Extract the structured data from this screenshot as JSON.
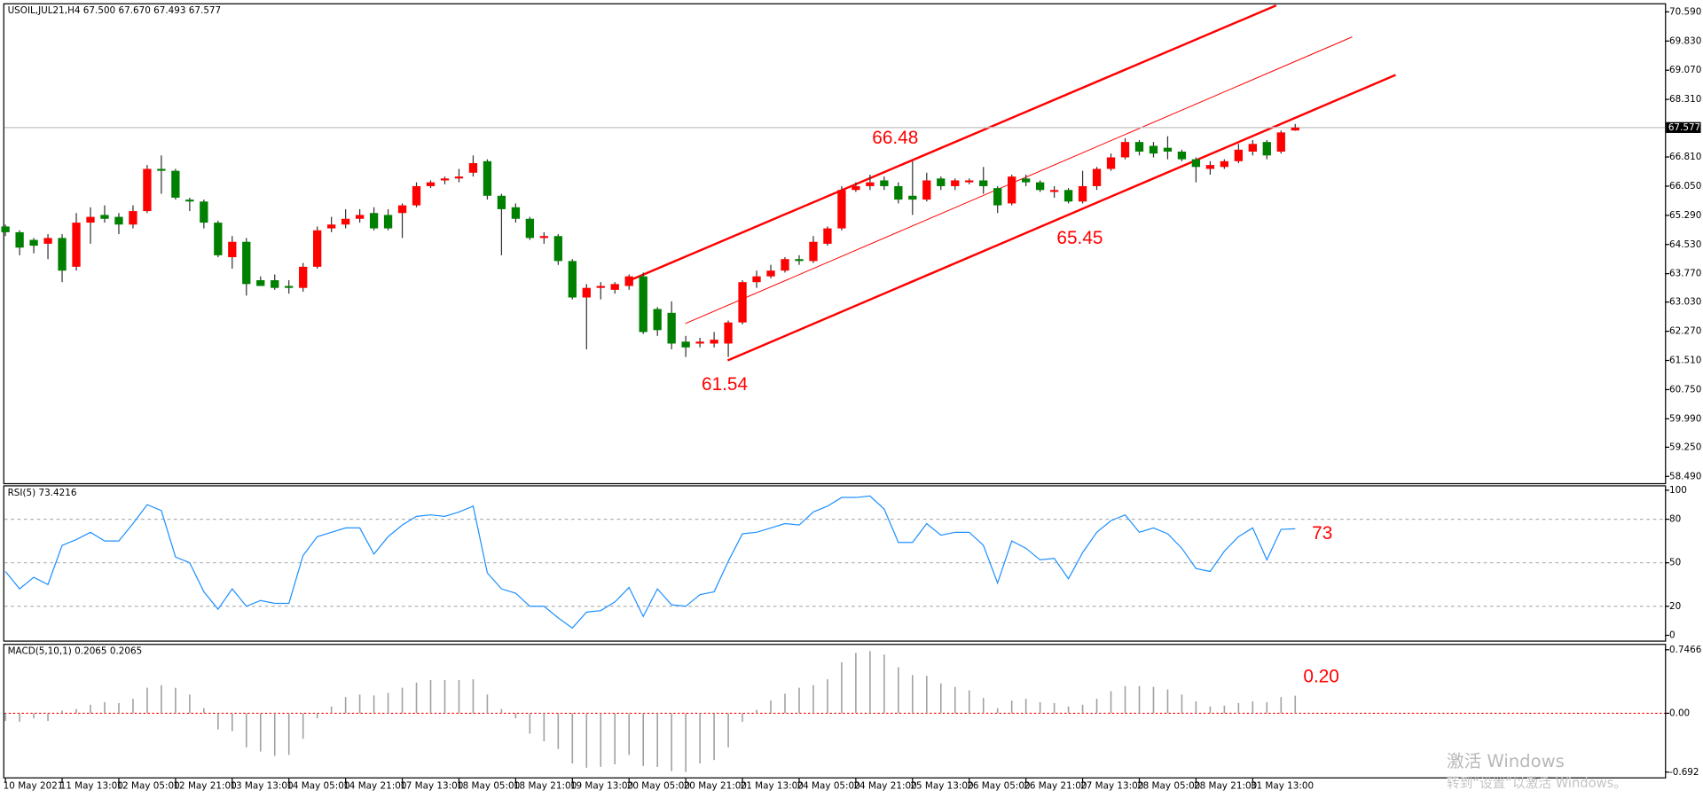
{
  "chart_data": [
    {
      "type": "candlestick",
      "title": "USOIL,JUL21,H4 67.500 67.670 67.493 67.577",
      "categories": [
        "10 May 2021",
        null,
        null,
        null,
        "11 May 13:00",
        null,
        null,
        null,
        "12 May 05:00",
        null,
        null,
        null,
        "12 May 21:00",
        null,
        null,
        null,
        "13 May 13:00",
        null,
        null,
        null,
        "14 May 05:00",
        null,
        null,
        null,
        "14 May 21:00",
        null,
        null,
        null,
        "17 May 13:00",
        null,
        null,
        null,
        "18 May 05:00",
        null,
        null,
        null,
        "18 May 21:00",
        null,
        null,
        null,
        "19 May 13:00",
        null,
        null,
        null,
        "20 May 05:00",
        null,
        null,
        null,
        "20 May 21:00",
        null,
        null,
        null,
        "21 May 13:00",
        null,
        null,
        null,
        "24 May 05:00",
        null,
        null,
        null,
        "24 May 21:00",
        null,
        null,
        null,
        "25 May 13:00",
        null,
        null,
        null,
        "26 May 05:00",
        null,
        null,
        null,
        "26 May 21:00",
        null,
        null,
        null,
        "27 May 13:00",
        null,
        null,
        null,
        "28 May 05:00",
        null,
        null,
        null,
        "28 May 21:00",
        null,
        null,
        null,
        "31 May 13:00",
        null,
        null,
        null
      ],
      "open": [
        65.0,
        64.85,
        64.65,
        64.55,
        64.7,
        63.95,
        65.1,
        65.3,
        65.25,
        65.05,
        65.4,
        66.5,
        66.45,
        65.7,
        65.65,
        65.1,
        64.2,
        64.6,
        63.6,
        63.6,
        63.45,
        63.4,
        63.95,
        64.95,
        65.05,
        65.2,
        65.35,
        65.3,
        65.35,
        65.55,
        66.05,
        66.2,
        66.25,
        66.4,
        66.7,
        65.8,
        65.5,
        65.2,
        64.7,
        64.75,
        64.1,
        63.15,
        63.4,
        63.35,
        63.45,
        63.7,
        62.85,
        62.75,
        62.0,
        61.95,
        61.95,
        61.95,
        62.5,
        63.55,
        63.7,
        63.85,
        64.15,
        64.1,
        64.55,
        64.95,
        65.95,
        66.05,
        66.2,
        66.05,
        65.8,
        65.7,
        66.25,
        66.05,
        66.15,
        66.2,
        66.0,
        65.6,
        66.25,
        66.15,
        65.9,
        65.95,
        65.65,
        66.05,
        66.5,
        66.8,
        67.2,
        67.1,
        67.05,
        66.95,
        66.75,
        66.5,
        66.55,
        66.7,
        66.95,
        67.2,
        66.95,
        67.5
      ],
      "high": [
        65.05,
        64.9,
        64.7,
        64.8,
        64.8,
        65.35,
        65.5,
        65.55,
        65.35,
        65.55,
        66.6,
        66.85,
        66.5,
        65.75,
        65.7,
        65.15,
        64.75,
        64.7,
        63.7,
        63.75,
        63.6,
        64.05,
        65.0,
        65.25,
        65.45,
        65.45,
        65.5,
        65.45,
        65.6,
        66.15,
        66.2,
        66.3,
        66.5,
        66.85,
        66.75,
        65.85,
        65.6,
        65.25,
        64.85,
        64.8,
        64.15,
        63.5,
        63.55,
        63.55,
        63.75,
        63.8,
        62.9,
        63.05,
        62.15,
        62.1,
        62.25,
        62.55,
        63.6,
        63.85,
        64.0,
        64.2,
        64.25,
        64.75,
        65.0,
        66.05,
        66.15,
        66.35,
        66.3,
        66.15,
        66.7,
        66.4,
        66.3,
        66.25,
        66.25,
        66.55,
        66.05,
        66.35,
        66.35,
        66.2,
        66.05,
        66.0,
        66.45,
        66.55,
        66.9,
        67.3,
        67.25,
        67.2,
        67.35,
        67.0,
        66.8,
        66.7,
        66.75,
        67.15,
        67.25,
        67.25,
        67.5,
        67.67
      ],
      "low": [
        64.75,
        64.25,
        64.3,
        64.15,
        63.55,
        63.85,
        64.55,
        65.1,
        64.8,
        64.95,
        65.35,
        65.85,
        65.7,
        65.4,
        64.95,
        64.2,
        63.9,
        63.2,
        63.45,
        63.35,
        63.25,
        63.3,
        63.9,
        64.85,
        64.95,
        65.1,
        64.9,
        64.9,
        64.7,
        65.5,
        66.0,
        66.1,
        66.15,
        66.3,
        65.7,
        64.25,
        65.1,
        64.65,
        64.55,
        64.0,
        63.1,
        61.8,
        63.1,
        63.25,
        63.35,
        62.2,
        62.15,
        61.8,
        61.6,
        61.85,
        61.85,
        61.6,
        62.45,
        63.4,
        63.65,
        63.8,
        64.0,
        64.05,
        64.5,
        64.9,
        65.9,
        65.95,
        65.95,
        65.6,
        65.3,
        65.65,
        65.95,
        65.95,
        66.1,
        65.85,
        65.35,
        65.55,
        66.05,
        65.9,
        65.75,
        65.6,
        65.6,
        65.95,
        66.45,
        66.75,
        66.85,
        66.8,
        66.75,
        66.7,
        66.15,
        66.35,
        66.5,
        66.65,
        66.85,
        66.75,
        66.9,
        67.493
      ],
      "close": [
        64.85,
        64.45,
        64.5,
        64.7,
        63.85,
        65.1,
        65.25,
        65.2,
        65.05,
        65.4,
        66.5,
        66.45,
        65.75,
        65.65,
        65.1,
        64.25,
        64.6,
        63.5,
        63.45,
        63.4,
        63.4,
        63.95,
        64.9,
        65.05,
        65.2,
        65.3,
        64.95,
        64.95,
        65.55,
        66.05,
        66.15,
        66.25,
        66.3,
        66.65,
        65.8,
        65.45,
        65.2,
        64.7,
        64.75,
        64.1,
        63.15,
        63.4,
        63.45,
        63.5,
        63.7,
        62.25,
        62.3,
        61.95,
        61.85,
        62.0,
        62.05,
        62.5,
        63.55,
        63.7,
        63.85,
        64.15,
        64.1,
        64.6,
        64.95,
        65.95,
        66.05,
        66.15,
        66.05,
        65.7,
        65.7,
        66.2,
        66.05,
        66.2,
        66.2,
        66.05,
        65.55,
        66.3,
        66.15,
        65.95,
        65.95,
        65.65,
        66.05,
        66.5,
        66.8,
        67.2,
        66.95,
        66.9,
        66.95,
        66.75,
        66.55,
        66.6,
        66.7,
        67.0,
        67.15,
        66.85,
        67.45,
        67.577
      ],
      "up_color": "#ff0000",
      "down_color": "#008000",
      "wick_color": "#333333",
      "ylim": [
        58.3,
        70.8
      ],
      "yticks": [
        {
          "value": 70.59,
          "label": "70.590"
        },
        {
          "value": 69.83,
          "label": "69.830"
        },
        {
          "value": 69.07,
          "label": "69.070"
        },
        {
          "value": 68.31,
          "label": "68.310"
        },
        {
          "value": 66.81,
          "label": "66.810"
        },
        {
          "value": 66.05,
          "label": "66.050"
        },
        {
          "value": 65.29,
          "label": "65.290"
        },
        {
          "value": 64.53,
          "label": "64.530"
        },
        {
          "value": 63.77,
          "label": "63.770"
        },
        {
          "value": 63.03,
          "label": "63.030"
        },
        {
          "value": 62.27,
          "label": "62.270"
        },
        {
          "value": 61.51,
          "label": "61.510"
        },
        {
          "value": 60.75,
          "label": "60.750"
        },
        {
          "value": 59.99,
          "label": "59.990"
        },
        {
          "value": 59.25,
          "label": "59.250"
        },
        {
          "value": 58.49,
          "label": "58.490"
        }
      ],
      "price_line": {
        "value": 67.577,
        "label": "67.577"
      },
      "annotations": [
        "66.48",
        "65.45",
        "61.54"
      ]
    },
    {
      "type": "line",
      "title": "RSI(5) 73.4216",
      "values": [
        44,
        32,
        40,
        35,
        62,
        66,
        71,
        65,
        65,
        77,
        90,
        86,
        54,
        50,
        30,
        18,
        32,
        20,
        24,
        22,
        22,
        55,
        68,
        71,
        74,
        74,
        56,
        68,
        76,
        82,
        83,
        82,
        85,
        89,
        43,
        32,
        29,
        20,
        20,
        12,
        5,
        16,
        17,
        23,
        33,
        13,
        32,
        21,
        20,
        28,
        30,
        51,
        70,
        71,
        74,
        77,
        76,
        85,
        89,
        95,
        95,
        96,
        87,
        64,
        64,
        77,
        69,
        71,
        71,
        62,
        36,
        65,
        60,
        52,
        53,
        39,
        57,
        71,
        79,
        83,
        71,
        74,
        70,
        60,
        46,
        44,
        58,
        68,
        74,
        52,
        73,
        73.4216
      ],
      "color": "#1e90ff",
      "ylim": [
        -4,
        103
      ],
      "yticks": [
        100,
        80,
        50,
        20,
        0
      ],
      "levels": [
        80,
        50,
        20
      ],
      "annotations": [
        "73"
      ]
    },
    {
      "type": "bar",
      "title": "MACD(5,10,1) 0.2065 0.2065",
      "values": [
        -0.09,
        -0.1,
        -0.06,
        -0.09,
        0.03,
        0.05,
        0.1,
        0.13,
        0.12,
        0.17,
        0.3,
        0.33,
        0.3,
        0.22,
        0.06,
        -0.19,
        -0.21,
        -0.4,
        -0.45,
        -0.5,
        -0.49,
        -0.3,
        -0.06,
        0.08,
        0.19,
        0.22,
        0.21,
        0.24,
        0.3,
        0.36,
        0.39,
        0.39,
        0.39,
        0.4,
        0.22,
        0.05,
        -0.06,
        -0.24,
        -0.33,
        -0.42,
        -0.59,
        -0.64,
        -0.63,
        -0.6,
        -0.49,
        -0.62,
        -0.63,
        -0.68,
        -0.69,
        -0.59,
        -0.55,
        -0.4,
        -0.1,
        0.04,
        0.15,
        0.23,
        0.3,
        0.33,
        0.4,
        0.6,
        0.71,
        0.73,
        0.69,
        0.54,
        0.45,
        0.44,
        0.35,
        0.31,
        0.27,
        0.18,
        0.06,
        0.15,
        0.17,
        0.13,
        0.12,
        0.08,
        0.1,
        0.17,
        0.26,
        0.32,
        0.32,
        0.31,
        0.28,
        0.22,
        0.14,
        0.08,
        0.09,
        0.12,
        0.14,
        0.13,
        0.19,
        0.2065
      ],
      "color": "#a0a0a0",
      "ylim": [
        -0.76,
        0.81
      ],
      "yticks": [
        0.7466,
        {
          "value": 0,
          "label": "0.00"
        },
        -0.692
      ],
      "zero_line_color": "#ff0000",
      "annotations": [
        "0.20"
      ]
    }
  ],
  "watermark": {
    "title": "激活 Windows",
    "subtitle": "转到“设置”以激活 Windows。"
  }
}
